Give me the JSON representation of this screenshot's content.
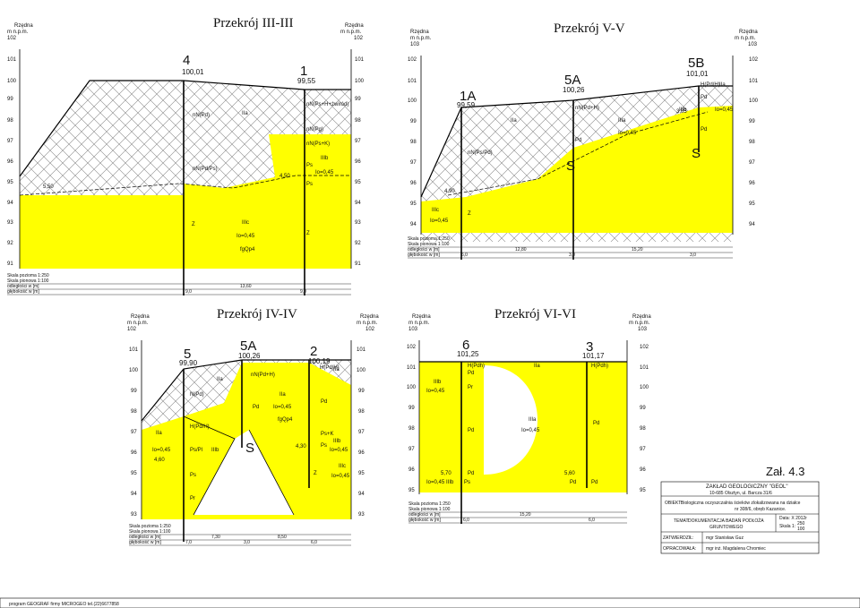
{
  "colors": {
    "sand": "#ffff00",
    "line": "#000000",
    "hatch": "#8a8a8a"
  },
  "common": {
    "rzedna": "Rzędna",
    "units": "m n.p.m.",
    "scale_h": "Skala pozioma 1:250",
    "scale_v": "Skala pionowa 1:100",
    "dist_label": "odległości w [m]",
    "depth_label": "głębokość w [m]"
  },
  "sections": [
    {
      "id": "p3",
      "title": "Przekrój III-III",
      "top_value": "102",
      "elevations": [
        "101",
        "100",
        "99",
        "98",
        "97",
        "96",
        "95",
        "94",
        "93",
        "92",
        "91"
      ],
      "boreholes": [
        {
          "name": "4",
          "elev": "100,01",
          "water": "5,50"
        },
        {
          "name": "1",
          "elev": "99,55",
          "water": "4,50"
        }
      ],
      "labels": [
        "nN(Pd)",
        "IIa",
        "nN(Ps+H+żwiród)",
        "nN(Pg)",
        "nN(Ps+K)",
        "nN(Pd/Ps)",
        "IIIb",
        "Ps",
        "Io=0,45",
        "Ps",
        "Z",
        "IIIc",
        "Io=0,45",
        "fgQp4",
        "Z"
      ],
      "distances": [
        "13,60"
      ],
      "depths": [
        "9,0",
        "9,0"
      ]
    },
    {
      "id": "p5",
      "title": "Przekrój V-V",
      "top_value": "103",
      "elevations": [
        "102",
        "101",
        "100",
        "99",
        "98",
        "97",
        "96",
        "95",
        "94"
      ],
      "elevations_right": [
        "102",
        "101",
        "100",
        "99",
        "98",
        "97",
        "96",
        "95",
        "94"
      ],
      "boreholes": [
        {
          "name": "1A",
          "elev": "99,59",
          "water": "4,90"
        },
        {
          "name": "5A",
          "elev": "100,26",
          "water": ""
        },
        {
          "name": "5B",
          "elev": "101,01",
          "water": "3,85"
        }
      ],
      "labels": [
        "nN(Ps/Pd)",
        "nN(Pd+H)",
        "IIa",
        "IIIa",
        "Io=0,45",
        "Pd",
        "S",
        "H(Pd/H)",
        "IIa",
        "Pd",
        "IIIb",
        "Io=0,45",
        "Pd",
        "S",
        "IIIc",
        "Io=0,45",
        "Z"
      ],
      "distances": [
        "12,80",
        "15,20"
      ],
      "depths": [
        "6,0",
        "3,0",
        "3,0"
      ]
    },
    {
      "id": "p4",
      "title": "Przekrój IV-IV",
      "top_value": "102",
      "elevations": [
        "101",
        "100",
        "99",
        "98",
        "97",
        "96",
        "95",
        "94",
        "93"
      ],
      "boreholes": [
        {
          "name": "5",
          "elev": "99,90",
          "water": "4,60"
        },
        {
          "name": "5A",
          "elev": "100,26",
          "water": ""
        },
        {
          "name": "2",
          "elev": "100,19",
          "water": "4,30"
        }
      ],
      "labels": [
        "IIa",
        "nN(Pd+H)",
        "N(Pd)",
        "IIa",
        "H(Pd/H)",
        "IIa",
        "Io=0,45",
        "Pd",
        "Pd",
        "fgQp4",
        "IIa",
        "H(Pd/H)",
        "Io=0,45",
        "Ps/Pl",
        "IIIb",
        "S",
        "Ps+K",
        "IIIb",
        "Ps",
        "Io=0,45",
        "Ps",
        "Pr",
        "Z",
        "IIIc",
        "Io=0,45"
      ],
      "distances": [
        "7,30",
        "8,50"
      ],
      "depths": [
        "7,0",
        "3,0",
        "6,0"
      ]
    },
    {
      "id": "p6",
      "title": "Przekrój VI-VI",
      "top_value": "103",
      "elevations": [
        "102",
        "101",
        "100",
        "99",
        "98",
        "97",
        "96",
        "95"
      ],
      "boreholes": [
        {
          "name": "6",
          "elev": "101,25",
          "water": "5,70"
        },
        {
          "name": "3",
          "elev": "101,17",
          "water": "5,60"
        }
      ],
      "labels": [
        "H(Pdh)",
        "IIa",
        "H(Pdh)",
        "Pd",
        "IIIb",
        "Io=0,45",
        "Pr",
        "IIIa",
        "Io=0,45",
        "Pd",
        "Pd",
        "Pd",
        "Io=0,45",
        "IIIb",
        "Ps",
        "Pd",
        "Pd"
      ],
      "distances": [
        "15,20"
      ],
      "depths": [
        "6,0",
        "6,0"
      ]
    }
  ],
  "stamp": {
    "zal": "Zał. 4.3",
    "company": "ZAKŁAD GEOLOGICZNY \"GEOL\"",
    "address": "10-685 Olsztyn, ul. Barcza 31/6",
    "obiekt_label": "OBIEKT:",
    "obiekt": "Biologiczna oczyszczalnia ścieków zlokalizowana na działce",
    "obiekt2": "nr 308/6, obręb Kazanice.",
    "temat_label": "TEMAT:",
    "temat": "DOKUMENTACJA BADAŃ PODŁOŻA",
    "temat2": "GRUNTOWEGO",
    "data": "Data: X 2012r",
    "skala": "Skala 1:",
    "skala_v": "250",
    "skala_v2": "100",
    "zatw_label": "ZATWIERDZIŁ:",
    "zatw": "mgr Stanisław Guz",
    "oprac_label": "OPRACOWAŁA:",
    "oprac": "mgr inż. Magdalena Chromiec"
  },
  "footer": "program GEOGRAF firmy MICROGEO tel.(22)6677858"
}
